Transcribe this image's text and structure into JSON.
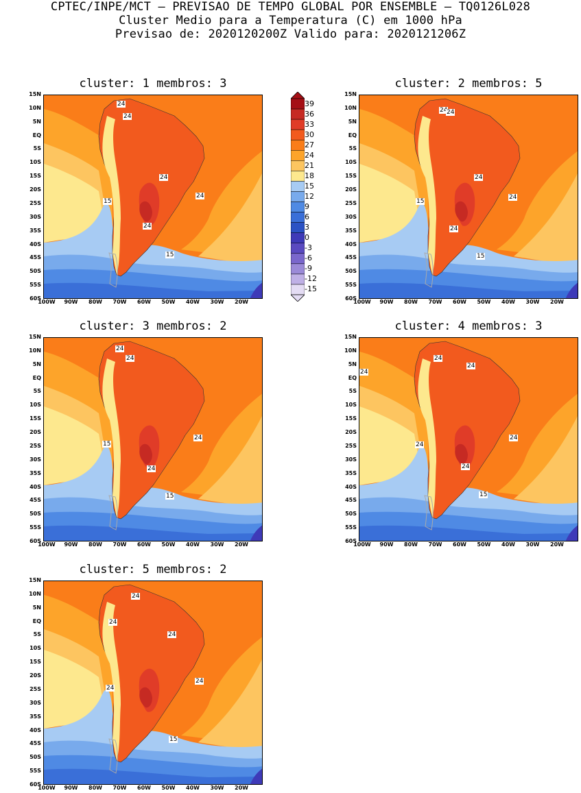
{
  "header": {
    "line1": "CPTEC/INPE/MCT – PREVISAO DE TEMPO GLOBAL POR ENSEMBLE – TQ0126L028",
    "line2": "Cluster Medio para a Temperatura (C) em 1000 hPa",
    "line3": "Previsao de: 2020120200Z   Valido para: 2020121206Z"
  },
  "lat_labels": [
    "15N",
    "10N",
    "5N",
    "EQ",
    "5S",
    "10S",
    "15S",
    "20S",
    "25S",
    "30S",
    "35S",
    "40S",
    "45S",
    "50S",
    "55S",
    "60S"
  ],
  "lon_labels": [
    "100W",
    "90W",
    "80W",
    "70W",
    "60W",
    "50W",
    "40W",
    "30W",
    "20W"
  ],
  "panels": [
    {
      "title": "cluster: 1   membros: 3",
      "labels": [
        "24",
        "24",
        "24",
        "24",
        "24",
        "15",
        "15"
      ]
    },
    {
      "title": "cluster: 2   membros: 5",
      "labels": [
        "24",
        "24",
        "24",
        "24",
        "24",
        "15",
        "15"
      ]
    },
    {
      "title": "cluster: 3   membros: 2",
      "labels": [
        "24",
        "24",
        "24",
        "24",
        "15",
        "15"
      ]
    },
    {
      "title": "cluster: 4   membros: 3",
      "labels": [
        "24",
        "24",
        "24",
        "24",
        "24",
        "24",
        "15",
        "15"
      ]
    },
    {
      "title": "cluster: 5   membros: 2",
      "labels": [
        "24",
        "24",
        "24",
        "24",
        "24",
        "15",
        "15"
      ]
    }
  ],
  "colorbar": {
    "levels": [
      "39",
      "36",
      "33",
      "30",
      "27",
      "24",
      "21",
      "18",
      "15",
      "12",
      "9",
      "6",
      "3",
      "0",
      "-3",
      "-6",
      "-9",
      "-12",
      "-15"
    ],
    "colors": [
      "#a50f15",
      "#c62a23",
      "#e03c28",
      "#f25a1e",
      "#fa7d19",
      "#fda42a",
      "#fdc560",
      "#fde88e",
      "#a7cbf3",
      "#78aaec",
      "#4f8ae4",
      "#3a6fd8",
      "#2b52c4",
      "#3e3ab8",
      "#5a4ac0",
      "#7a67cc",
      "#9b8ad8",
      "#bfb0e6",
      "#e4dcf4"
    ]
  }
}
